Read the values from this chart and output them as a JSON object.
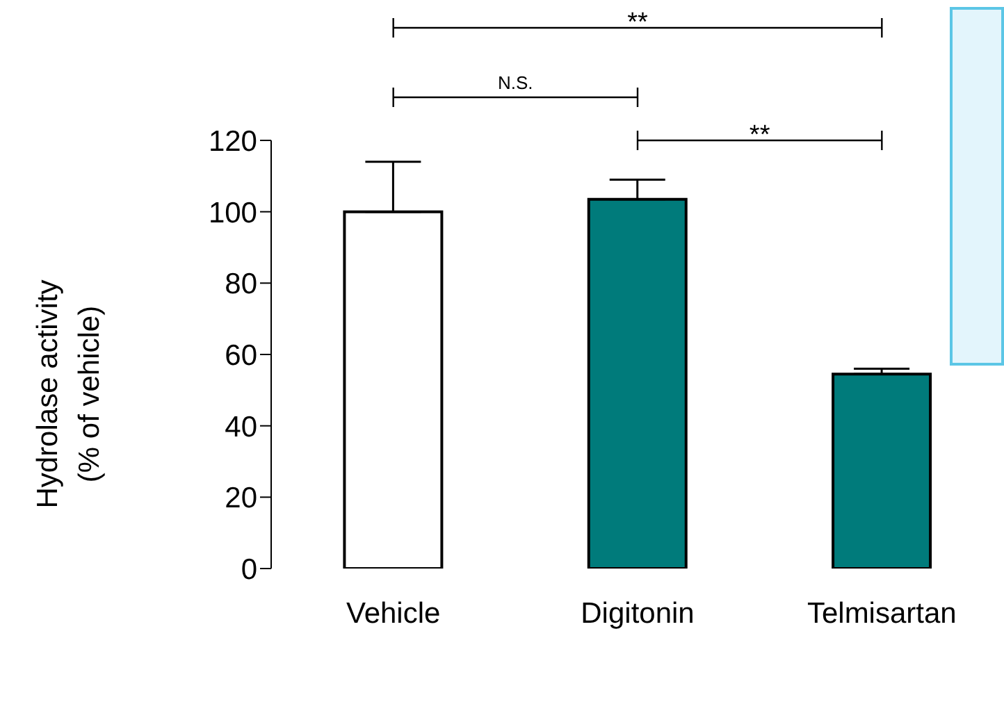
{
  "chart_data": {
    "type": "bar",
    "ylabel": "Hydrolase activity\n(% of vehicle)",
    "categories": [
      "Vehicle",
      "Digitonin",
      "Telmisartan"
    ],
    "values": [
      100,
      103.5,
      54.5
    ],
    "colors": [
      "#ffffff",
      "#007b7b",
      "#007b7b"
    ],
    "errors": [
      [
        100,
        114
      ],
      [
        103.5,
        109
      ],
      [
        54.5,
        56
      ]
    ],
    "ylim": [
      0,
      120
    ],
    "yticks": [
      0,
      20,
      40,
      60,
      80,
      100,
      120
    ],
    "annotations": [
      "**",
      "N.S.",
      "**"
    ]
  }
}
